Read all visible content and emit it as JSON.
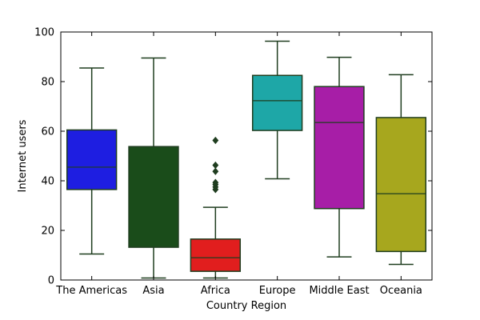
{
  "chart_data": {
    "type": "box",
    "title": "",
    "xlabel": "Country Region",
    "ylabel": "Internet users",
    "ylim": [
      0,
      100
    ],
    "yticks": [
      0,
      20,
      40,
      60,
      80,
      100
    ],
    "grid": false,
    "categories": [
      "The Americas",
      "Asia",
      "Africa",
      "Europe",
      "Middle East",
      "Oceania"
    ],
    "boxes": [
      {
        "category": "The Americas",
        "whisker_low": 10.5,
        "q1": 36.5,
        "median": 45.5,
        "q3": 60.5,
        "whisker_high": 85.5,
        "outliers": [],
        "color": "#1e1ee1"
      },
      {
        "category": "Asia",
        "whisker_low": 0.8,
        "q1": 13.2,
        "median": 53.8,
        "q3": 53.8,
        "whisker_high": 89.5,
        "outliers": [],
        "color": "#1a4c1a"
      },
      {
        "category": "Africa",
        "whisker_low": 0.8,
        "q1": 3.5,
        "median": 9.0,
        "q3": 16.5,
        "whisker_high": 29.3,
        "outliers": [
          36.5,
          37.5,
          38.5,
          39.3,
          43.8,
          46.3,
          56.3
        ],
        "color": "#e11e1e"
      },
      {
        "category": "Europe",
        "whisker_low": 40.8,
        "q1": 60.3,
        "median": 72.3,
        "q3": 82.5,
        "whisker_high": 96.3,
        "outliers": [],
        "color": "#1ea7a7"
      },
      {
        "category": "Middle East",
        "whisker_low": 9.3,
        "q1": 28.8,
        "median": 63.5,
        "q3": 78.0,
        "whisker_high": 89.8,
        "outliers": [],
        "color": "#a71ea7"
      },
      {
        "category": "Oceania",
        "whisker_low": 6.3,
        "q1": 11.5,
        "median": 34.8,
        "q3": 65.5,
        "whisker_high": 82.8,
        "outliers": [],
        "color": "#a7a71e"
      }
    ],
    "line_color": "#1f3d1f"
  }
}
